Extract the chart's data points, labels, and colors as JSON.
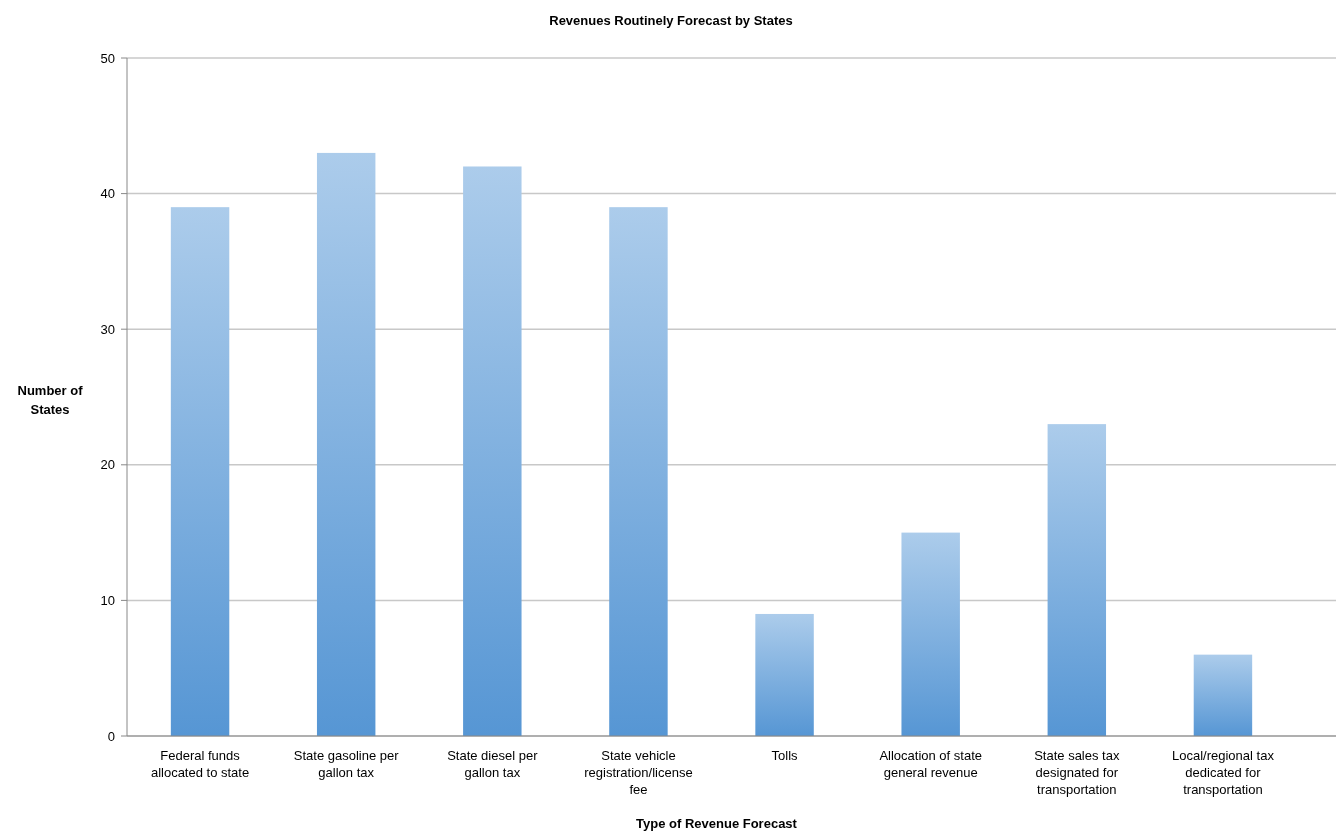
{
  "chart_data": {
    "type": "bar",
    "title": "Revenues Routinely Forecast by States",
    "xlabel": "Type of Revenue Forecast",
    "ylabel": "Number of States",
    "categories": [
      "Federal funds allocated to state",
      "State gasoline per gallon tax",
      "State diesel per gallon tax",
      "State vehicle registration/license fee",
      "Tolls",
      "Allocation of state general revenue",
      "State sales tax designated for transportation",
      "Local/regional tax dedicated for transportation"
    ],
    "values": [
      39,
      43,
      42,
      39,
      9,
      15,
      23,
      6
    ],
    "color": "#7fb0e0",
    "ylim": [
      0,
      50
    ],
    "yticks": [
      0,
      10,
      20,
      30,
      40,
      50
    ],
    "grid": "y"
  }
}
